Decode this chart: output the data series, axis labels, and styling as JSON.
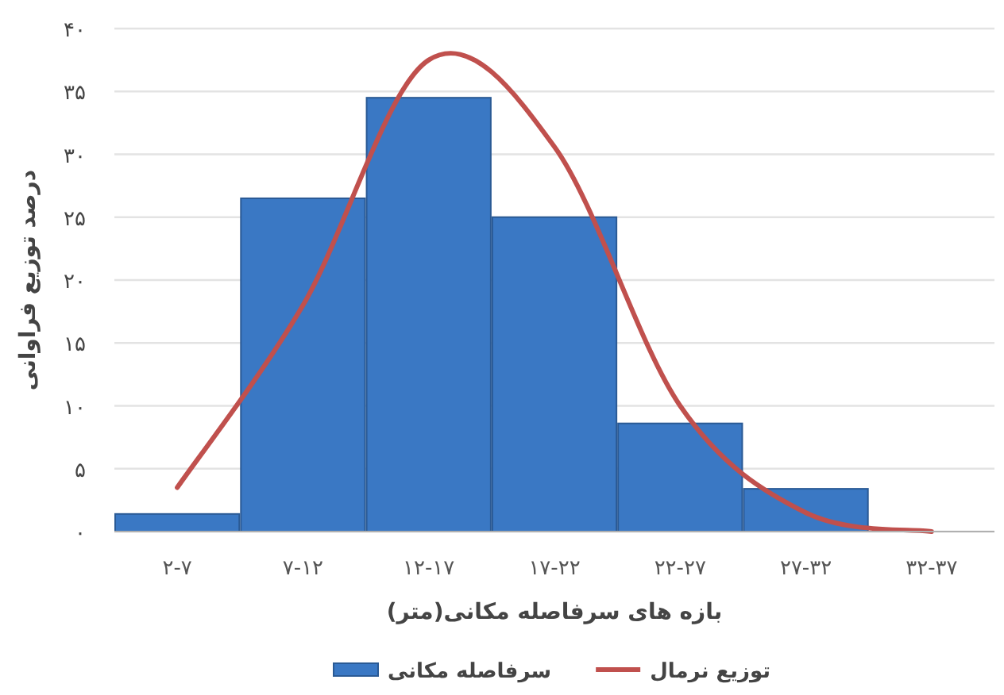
{
  "chart_data": {
    "type": "bar",
    "xlabel": "بازه های سرفاصله مکانی(متر)",
    "ylabel": "درصد توزیع فراوانی",
    "categories": [
      "۲-۷",
      "۷-۱۲",
      "۱۲-۱۷",
      "۱۷-۲۲",
      "۲۲-۲۷",
      "۲۷-۳۲",
      "۳۲-۳۷"
    ],
    "series": [
      {
        "name": "سرفاصله مکانی",
        "color": "#3a78c4",
        "values": [
          1.4,
          26.5,
          34.5,
          25,
          8.6,
          3.4,
          0
        ]
      },
      {
        "name": "توزیع نرمال",
        "type": "line",
        "color": "#c0504d",
        "values": [
          3.5,
          18,
          37.5,
          30.6,
          10,
          1.5,
          0
        ]
      }
    ],
    "ylim": [
      0,
      40
    ],
    "yticks": [
      {
        "value": 0,
        "label": "۰"
      },
      {
        "value": 5,
        "label": "۵"
      },
      {
        "value": 10,
        "label": "۱۰"
      },
      {
        "value": 15,
        "label": "۱۵"
      },
      {
        "value": 20,
        "label": "۲۰"
      },
      {
        "value": 25,
        "label": "۲۵"
      },
      {
        "value": 30,
        "label": "۳۰"
      },
      {
        "value": 35,
        "label": "۳۵"
      },
      {
        "value": 40,
        "label": "۴۰"
      }
    ],
    "grid": "y",
    "legend": "bottom"
  }
}
